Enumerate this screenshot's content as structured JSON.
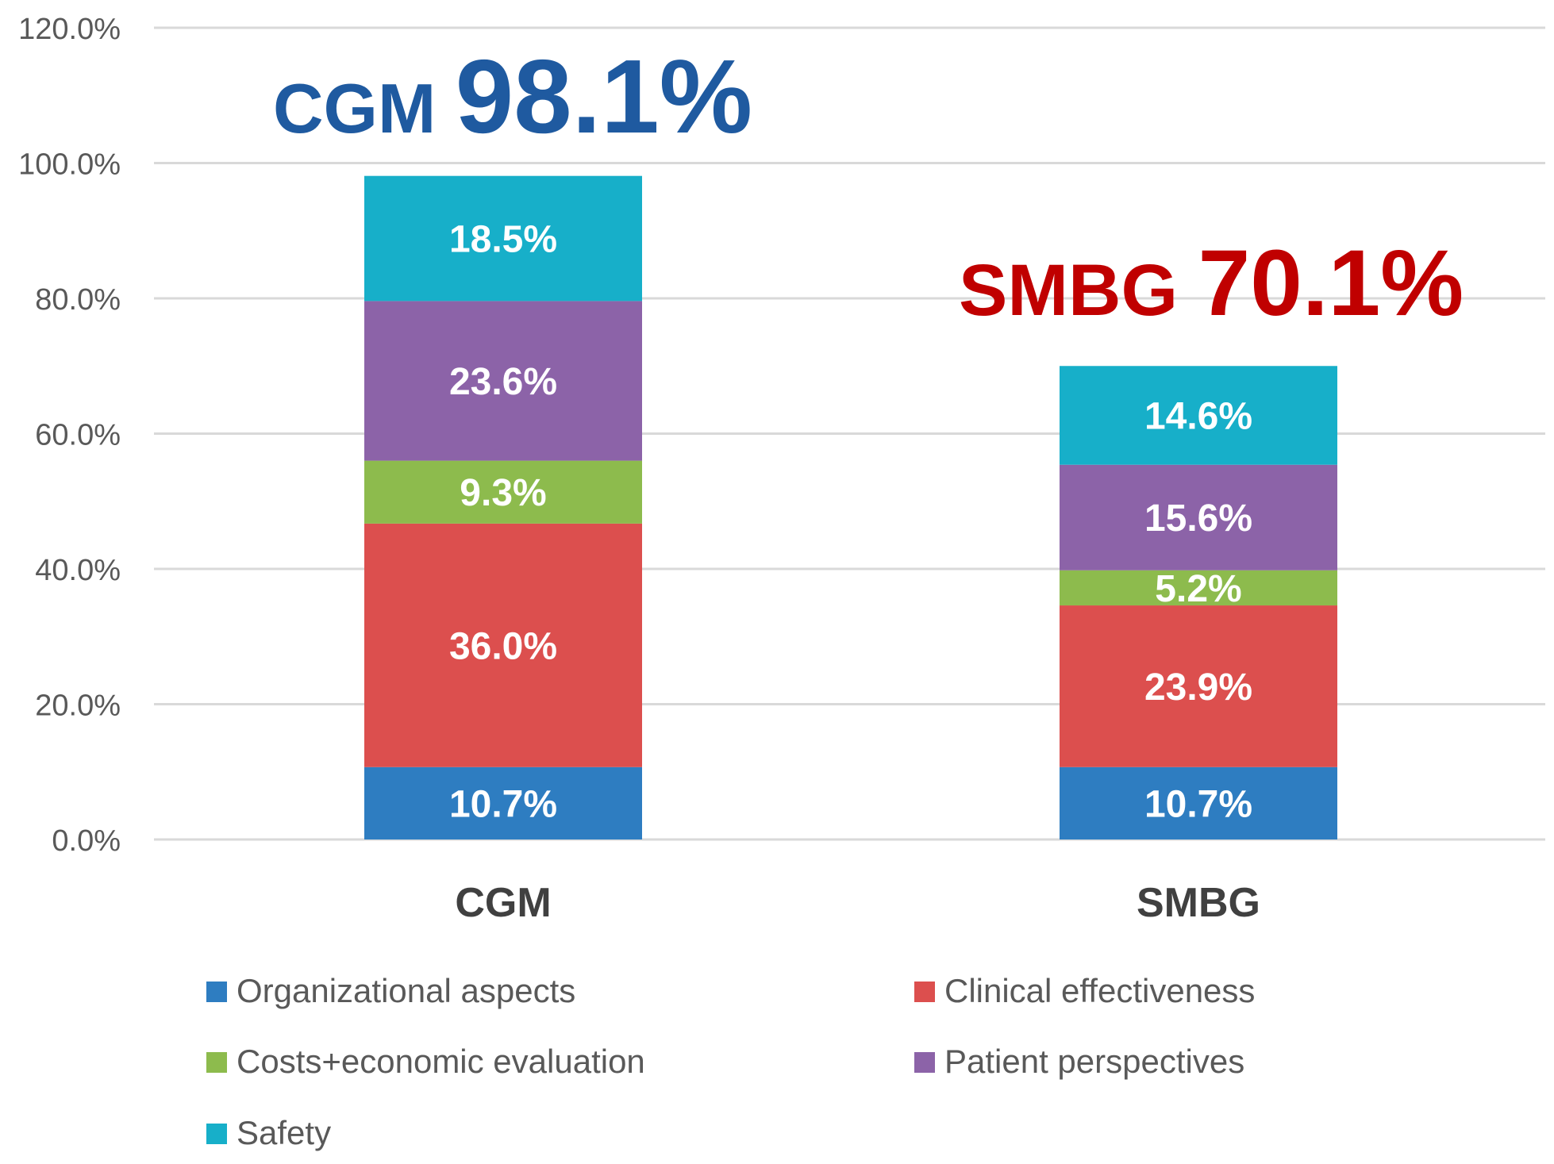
{
  "chart_data": {
    "type": "bar",
    "stacked": true,
    "categories": [
      "CGM",
      "SMBG"
    ],
    "series": [
      {
        "name": "Organizational aspects",
        "color": "#2E7DC1",
        "values": [
          10.7,
          10.7
        ],
        "labels": [
          "10.7%",
          "10.7%"
        ]
      },
      {
        "name": "Clinical effectiveness",
        "color": "#DC4F4E",
        "values": [
          36.0,
          23.9
        ],
        "labels": [
          "36.0%",
          "23.9%"
        ]
      },
      {
        "name": "Costs+economic evaluation",
        "color": "#8DBB4D",
        "values": [
          9.3,
          5.2
        ],
        "labels": [
          "9.3%",
          "5.2%"
        ]
      },
      {
        "name": "Patient perspectives",
        "color": "#8C63A8",
        "values": [
          23.6,
          15.6
        ],
        "labels": [
          "23.6%",
          "15.6%"
        ]
      },
      {
        "name": "Safety",
        "color": "#17AFC9",
        "values": [
          18.5,
          14.6
        ],
        "labels": [
          "18.5%",
          "14.6%"
        ]
      }
    ],
    "totals": [
      {
        "name": "CGM",
        "value": "98.1%",
        "color": "#1F5AA0"
      },
      {
        "name": "SMBG",
        "value": "70.1%",
        "color": "#C00000"
      }
    ],
    "ylim": [
      0,
      120
    ],
    "yticks": [
      "0.0%",
      "20.0%",
      "40.0%",
      "60.0%",
      "80.0%",
      "100.0%",
      "120.0%"
    ],
    "ytick_values": [
      0,
      20,
      40,
      60,
      80,
      100,
      120
    ],
    "grid": true,
    "legend_position": "bottom",
    "title": "",
    "xlabel": "",
    "ylabel": ""
  }
}
